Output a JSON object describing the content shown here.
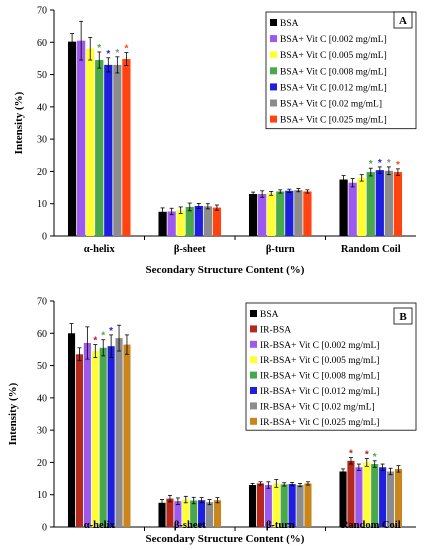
{
  "chart_data": [
    {
      "panel_label": "A",
      "type": "bar",
      "categories": [
        "α-helix",
        "β-sheet",
        "β-turn",
        "Random Coil"
      ],
      "xlabel": "Secondary Structure Content (%)",
      "ylabel": "Intensity (%)",
      "ylim": [
        0,
        70
      ],
      "yticks": [
        0,
        10,
        20,
        30,
        40,
        50,
        60,
        70
      ],
      "legend_position": "top-right",
      "series": [
        {
          "name": "BSA",
          "color": "#000000",
          "values": [
            60.2,
            7.5,
            13.0,
            17.5
          ],
          "errors": [
            2.5,
            1.2,
            0.6,
            1.2
          ],
          "significant": [
            false,
            false,
            false,
            false
          ]
        },
        {
          "name": "BSA+ Vit C [0.002 mg/mL]",
          "color": "#9b59f0",
          "values": [
            60.5,
            7.6,
            13.0,
            16.5
          ],
          "errors": [
            6.0,
            1.0,
            1.0,
            1.3
          ],
          "significant": [
            false,
            false,
            false,
            false
          ]
        },
        {
          "name": "BSA+ Vit C [0.005 mg/mL]",
          "color": "#ffff33",
          "values": [
            58.0,
            8.0,
            13.2,
            18.0
          ],
          "errors": [
            3.5,
            1.0,
            0.6,
            1.0
          ],
          "significant": [
            false,
            false,
            false,
            false
          ]
        },
        {
          "name": "BSA+ Vit C [0.008 mg/mL]",
          "color": "#49a84b",
          "values": [
            54.5,
            9.0,
            13.8,
            19.8
          ],
          "errors": [
            2.5,
            1.2,
            0.5,
            1.2
          ],
          "significant": [
            true,
            false,
            false,
            true
          ]
        },
        {
          "name": "BSA+ Vit C [0.012 mg/mL]",
          "color": "#1f1fe0",
          "values": [
            53.0,
            9.3,
            14.0,
            20.4
          ],
          "errors": [
            2.2,
            0.8,
            0.5,
            1.0
          ],
          "significant": [
            true,
            false,
            false,
            true
          ]
        },
        {
          "name": "BSA+ Vit C [0.02 mg/mL]",
          "color": "#8c8c8c",
          "values": [
            53.0,
            9.2,
            14.2,
            20.2
          ],
          "errors": [
            2.5,
            0.8,
            0.5,
            1.2
          ],
          "significant": [
            true,
            false,
            false,
            true
          ]
        },
        {
          "name": "BSA+ Vit C [0.025 mg/mL]",
          "color": "#ff4412",
          "values": [
            54.8,
            8.8,
            13.8,
            19.8
          ],
          "errors": [
            2.0,
            0.8,
            0.5,
            1.0
          ],
          "significant": [
            true,
            false,
            false,
            true
          ]
        }
      ]
    },
    {
      "panel_label": "B",
      "type": "bar",
      "categories": [
        "α-helix",
        "β-sheet",
        "β-turn",
        "Random Coil"
      ],
      "xlabel": "Secondary Structure Content (%)",
      "ylabel": "Intensity (%)",
      "ylim": [
        0,
        70
      ],
      "yticks": [
        0,
        10,
        20,
        30,
        40,
        50,
        60,
        70
      ],
      "legend_position": "top-right",
      "series": [
        {
          "name": "BSA",
          "color": "#000000",
          "values": [
            60.0,
            7.5,
            13.0,
            17.2
          ],
          "errors": [
            3.0,
            1.0,
            0.5,
            0.8
          ],
          "significant": [
            false,
            false,
            false,
            false
          ]
        },
        {
          "name": "IR-BSA",
          "color": "#b5281c",
          "values": [
            53.5,
            8.8,
            13.5,
            20.5
          ],
          "errors": [
            2.0,
            1.0,
            0.5,
            1.0
          ],
          "significant": [
            false,
            false,
            false,
            true
          ]
        },
        {
          "name": "IR-BSA+ Vit C [0.002 mg/mL]",
          "color": "#9b59f0",
          "values": [
            57.0,
            8.0,
            13.0,
            18.5
          ],
          "errors": [
            5.0,
            1.0,
            1.0,
            1.0
          ],
          "significant": [
            false,
            false,
            false,
            false
          ]
        },
        {
          "name": "IR-BSA+ Vit C [0.005 mg/mL]",
          "color": "#ffff33",
          "values": [
            54.5,
            8.5,
            13.5,
            20.0
          ],
          "errors": [
            2.0,
            1.0,
            1.2,
            1.2
          ],
          "significant": [
            true,
            false,
            false,
            true
          ]
        },
        {
          "name": "IR-BSA+ Vit C [0.008 mg/mL]",
          "color": "#49a84b",
          "values": [
            55.5,
            8.2,
            13.2,
            19.5
          ],
          "errors": [
            2.5,
            1.0,
            0.5,
            1.0
          ],
          "significant": [
            true,
            false,
            false,
            true
          ]
        },
        {
          "name": "IR-BSA+ Vit C [0.012 mg/mL]",
          "color": "#1f1fe0",
          "values": [
            56.0,
            8.3,
            13.3,
            18.5
          ],
          "errors": [
            3.5,
            0.8,
            0.5,
            1.0
          ],
          "significant": [
            true,
            false,
            false,
            false
          ]
        },
        {
          "name": "IR-BSA+ Vit C [0.02 mg/mL]",
          "color": "#8c8c8c",
          "values": [
            58.5,
            7.7,
            13.0,
            17.2
          ],
          "errors": [
            4.0,
            0.8,
            0.5,
            1.0
          ],
          "significant": [
            false,
            false,
            false,
            false
          ]
        },
        {
          "name": "IR-BSA+ Vit C [0.025 mg/mL]",
          "color": "#c8861c",
          "values": [
            56.5,
            8.3,
            13.5,
            18.0
          ],
          "errors": [
            3.0,
            0.8,
            0.5,
            1.0
          ],
          "significant": [
            false,
            false,
            false,
            false
          ]
        }
      ]
    }
  ]
}
